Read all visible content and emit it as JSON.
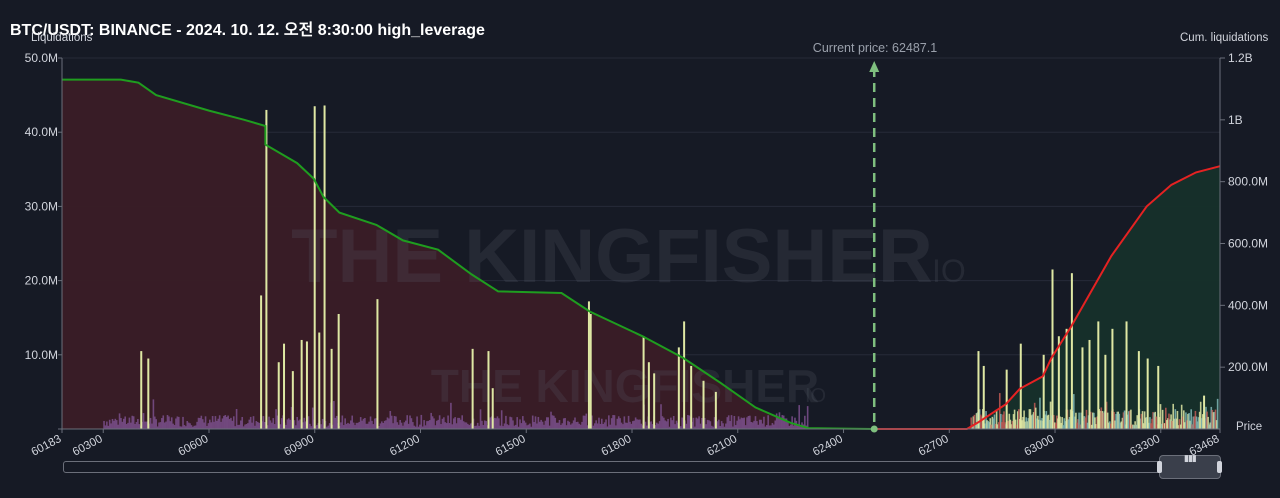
{
  "header": {
    "title": "BTC/USDT: BINANCE - 2024. 10. 12. 오전 8:30:00 high_leverage"
  },
  "axes": {
    "left_name": "Liquidations",
    "right_name": "Cum. liquidations",
    "x_name": "Price"
  },
  "current_price_label": "Current price: 62487.1",
  "watermark": {
    "brand": "THE KINGFISHER",
    "suffix": "IO"
  },
  "colors": {
    "background": "#161a25",
    "left_cum": "#1f9d1f",
    "right_cum": "#e52222",
    "left_fill": "#3a1c26",
    "right_fill": "#16302a",
    "current_price": "#7fbf7f",
    "yellow_bar": "#dfe8a4",
    "purple_bar": "#7a4f8c",
    "teal_bar": "#7fb7b6",
    "red_bar": "#c05a55"
  },
  "chart_data": {
    "type": "bar",
    "title": "BTC/USDT: BINANCE - 2024. 10. 12. 오전 8:30:00 high_leverage",
    "xlabel": "Price",
    "ylabel": "Liquidations",
    "y2label": "Cum. liquidations",
    "xlim": [
      60183,
      63468
    ],
    "ylim": [
      0,
      50000000
    ],
    "y2lim": [
      0,
      1200000000
    ],
    "x_ticks": [
      60183,
      60300,
      60600,
      60900,
      61200,
      61500,
      61800,
      62100,
      62400,
      62700,
      63000,
      63300,
      63468
    ],
    "y_ticks": [
      {
        "value": 0,
        "label": ""
      },
      {
        "value": 10000000,
        "label": "10.0M"
      },
      {
        "value": 20000000,
        "label": "20.0M"
      },
      {
        "value": 30000000,
        "label": "30.0M"
      },
      {
        "value": 40000000,
        "label": "40.0M"
      },
      {
        "value": 50000000,
        "label": "50.0M"
      }
    ],
    "y2_ticks": [
      {
        "value": 200000000,
        "label": "200.0M"
      },
      {
        "value": 400000000,
        "label": "400.0M"
      },
      {
        "value": 600000000,
        "label": "600.0M"
      },
      {
        "value": 800000000,
        "label": "800.0M"
      },
      {
        "value": 1000000000,
        "label": "1B"
      },
      {
        "value": 1200000000,
        "label": "1.2B"
      }
    ],
    "current_price": 62487.1,
    "grid": true,
    "big_bars": [
      {
        "x": 60405,
        "v": 10500000
      },
      {
        "x": 60425,
        "v": 9500000
      },
      {
        "x": 60745,
        "v": 18000000
      },
      {
        "x": 60760,
        "v": 43000000
      },
      {
        "x": 60795,
        "v": 9000000
      },
      {
        "x": 60810,
        "v": 11500000
      },
      {
        "x": 60835,
        "v": 7800000
      },
      {
        "x": 60860,
        "v": 12000000
      },
      {
        "x": 60875,
        "v": 11800000
      },
      {
        "x": 60897,
        "v": 43500000
      },
      {
        "x": 60910,
        "v": 13000000
      },
      {
        "x": 60925,
        "v": 43600000
      },
      {
        "x": 60945,
        "v": 10800000
      },
      {
        "x": 60965,
        "v": 15500000
      },
      {
        "x": 61075,
        "v": 17500000
      },
      {
        "x": 61345,
        "v": 10800000
      },
      {
        "x": 61390,
        "v": 10500000
      },
      {
        "x": 61402,
        "v": 5500000
      },
      {
        "x": 61675,
        "v": 17200000
      },
      {
        "x": 61680,
        "v": 15500000
      },
      {
        "x": 61830,
        "v": 12500000
      },
      {
        "x": 61845,
        "v": 9000000
      },
      {
        "x": 61860,
        "v": 7500000
      },
      {
        "x": 61930,
        "v": 11000000
      },
      {
        "x": 61945,
        "v": 14500000
      },
      {
        "x": 61965,
        "v": 8500000
      },
      {
        "x": 62000,
        "v": 6500000
      },
      {
        "x": 62035,
        "v": 5000000
      },
      {
        "x": 62780,
        "v": 10500000
      },
      {
        "x": 62795,
        "v": 8500000
      },
      {
        "x": 62860,
        "v": 8000000
      },
      {
        "x": 62900,
        "v": 11500000
      },
      {
        "x": 62965,
        "v": 10000000
      },
      {
        "x": 62990,
        "v": 21500000
      },
      {
        "x": 63008,
        "v": 12500000
      },
      {
        "x": 63030,
        "v": 13500000
      },
      {
        "x": 63045,
        "v": 21000000
      },
      {
        "x": 63075,
        "v": 11000000
      },
      {
        "x": 63095,
        "v": 12000000
      },
      {
        "x": 63120,
        "v": 14500000
      },
      {
        "x": 63140,
        "v": 10000000
      },
      {
        "x": 63160,
        "v": 13500000
      },
      {
        "x": 63200,
        "v": 14500000
      },
      {
        "x": 63235,
        "v": 10500000
      },
      {
        "x": 63260,
        "v": 9500000
      },
      {
        "x": 63290,
        "v": 8500000
      },
      {
        "x": 63420,
        "v": 4500000
      }
    ],
    "cum_left": [
      {
        "x": 60183,
        "y": 1130000000
      },
      {
        "x": 60350,
        "y": 1130000000
      },
      {
        "x": 60400,
        "y": 1120000000
      },
      {
        "x": 60450,
        "y": 1080000000
      },
      {
        "x": 60600,
        "y": 1030000000
      },
      {
        "x": 60700,
        "y": 1000000000
      },
      {
        "x": 60760,
        "y": 980000000
      },
      {
        "x": 60760,
        "y": 920000000
      },
      {
        "x": 60850,
        "y": 860000000
      },
      {
        "x": 60897,
        "y": 810000000
      },
      {
        "x": 60925,
        "y": 750000000
      },
      {
        "x": 60970,
        "y": 700000000
      },
      {
        "x": 61075,
        "y": 660000000
      },
      {
        "x": 61150,
        "y": 610000000
      },
      {
        "x": 61250,
        "y": 580000000
      },
      {
        "x": 61345,
        "y": 500000000
      },
      {
        "x": 61400,
        "y": 460000000
      },
      {
        "x": 61420,
        "y": 445000000
      },
      {
        "x": 61600,
        "y": 440000000
      },
      {
        "x": 61680,
        "y": 380000000
      },
      {
        "x": 61830,
        "y": 300000000
      },
      {
        "x": 61945,
        "y": 230000000
      },
      {
        "x": 62050,
        "y": 150000000
      },
      {
        "x": 62150,
        "y": 70000000
      },
      {
        "x": 62250,
        "y": 20000000
      },
      {
        "x": 62300,
        "y": 3000000
      },
      {
        "x": 62487,
        "y": 0
      }
    ],
    "cum_right": [
      {
        "x": 62487,
        "y": 0
      },
      {
        "x": 62750,
        "y": 0
      },
      {
        "x": 62780,
        "y": 20000000
      },
      {
        "x": 62860,
        "y": 80000000
      },
      {
        "x": 62900,
        "y": 130000000
      },
      {
        "x": 62965,
        "y": 170000000
      },
      {
        "x": 62990,
        "y": 230000000
      },
      {
        "x": 63045,
        "y": 330000000
      },
      {
        "x": 63095,
        "y": 430000000
      },
      {
        "x": 63160,
        "y": 560000000
      },
      {
        "x": 63260,
        "y": 720000000
      },
      {
        "x": 63330,
        "y": 790000000
      },
      {
        "x": 63400,
        "y": 830000000
      },
      {
        "x": 63468,
        "y": 850000000
      }
    ]
  }
}
